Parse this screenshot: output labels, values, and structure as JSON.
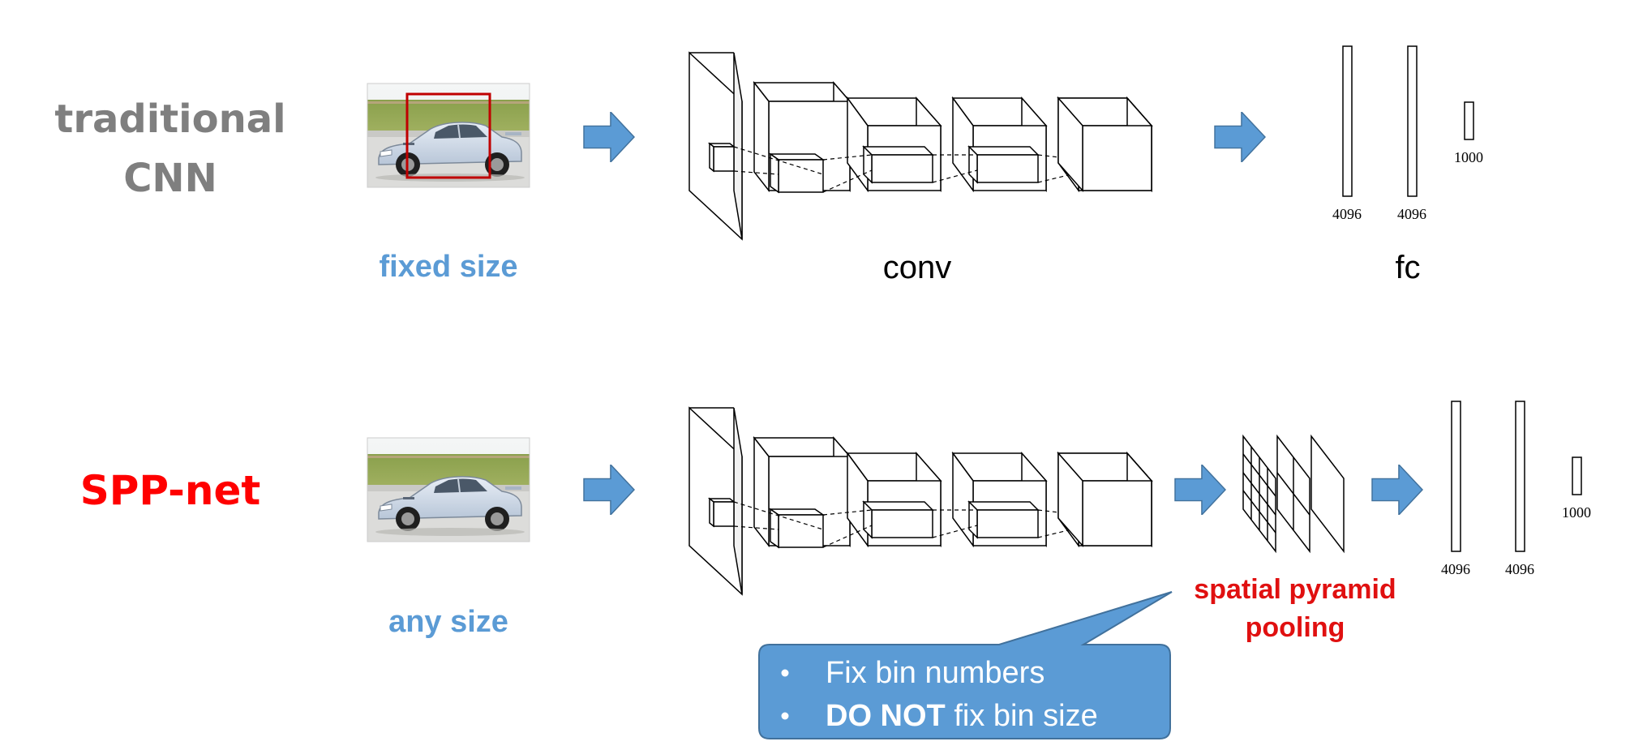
{
  "rows": {
    "traditional": {
      "title_line1": "traditional",
      "title_line2": "CNN",
      "image_caption": "fixed size",
      "conv_label": "conv",
      "fc_label": "fc",
      "fc_sizes": [
        "4096",
        "4096",
        "1000"
      ]
    },
    "spp": {
      "title": "SPP-net",
      "image_caption": "any size",
      "spp_label_line1": "spatial pyramid",
      "spp_label_line2": "pooling",
      "fc_sizes": [
        "4096",
        "4096",
        "1000"
      ]
    }
  },
  "callout": {
    "items": [
      {
        "bold": "",
        "text": "Fix bin numbers"
      },
      {
        "bold": "DO NOT",
        "text": " fix bin size"
      }
    ]
  },
  "colors": {
    "title_gray": "#7f7f7f",
    "title_red": "#ff0000",
    "caption_blue": "#5b9bd5",
    "arrow_blue": "#5b9bd5",
    "callout_fill": "#5b9bd5",
    "callout_stroke": "#41719c",
    "spp_label_red": "#e01010",
    "crop_box_red": "#c00000"
  },
  "icons": [
    "car-photo",
    "crop-box",
    "right-arrow"
  ]
}
